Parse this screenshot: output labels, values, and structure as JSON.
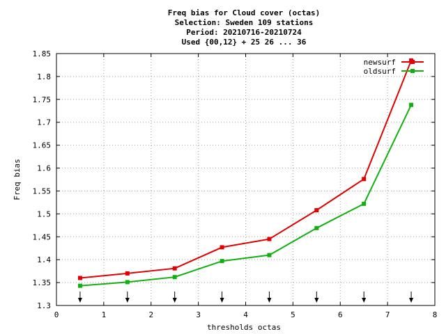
{
  "chart_data": {
    "type": "line",
    "title_lines": [
      "Freq bias  for Cloud cover (octas)",
      "Selection: Sweden    109 stations",
      "Period: 20210716-20210724",
      "Used {00,12} + 25 26 ... 36"
    ],
    "xlabel": "thresholds octas",
    "ylabel": "Freq bias",
    "xlim": [
      0,
      8
    ],
    "ylim": [
      1.3,
      1.85
    ],
    "xticks": [
      0,
      1,
      2,
      3,
      4,
      5,
      6,
      7,
      8
    ],
    "xtick_labels": [
      "0",
      "1",
      "2",
      "3",
      "4",
      "5",
      "6",
      "7",
      "8"
    ],
    "yticks": [
      1.3,
      1.35,
      1.4,
      1.45,
      1.5,
      1.55,
      1.6,
      1.65,
      1.7,
      1.75,
      1.8,
      1.85
    ],
    "ytick_labels": [
      "1.3",
      "1.35",
      "1.4",
      "1.45",
      "1.5",
      "1.55",
      "1.6",
      "1.65",
      "1.7",
      "1.75",
      "1.8",
      "1.85"
    ],
    "grid": true,
    "legend_position": "top-right",
    "x": [
      0.5,
      1.5,
      2.5,
      3.5,
      4.5,
      5.5,
      6.5,
      7.5
    ],
    "series": [
      {
        "name": "newsurf",
        "color": "#e00000",
        "values": [
          1.36,
          1.37,
          1.381,
          1.427,
          1.445,
          1.508,
          1.576,
          1.835
        ]
      },
      {
        "name": "oldsurf",
        "color": "#10b010",
        "values": [
          1.343,
          1.351,
          1.362,
          1.397,
          1.41,
          1.469,
          1.522,
          1.738
        ]
      }
    ],
    "arrow_markers_x": [
      0.5,
      1.5,
      2.5,
      3.5,
      4.5,
      5.5,
      6.5,
      7.5
    ]
  }
}
